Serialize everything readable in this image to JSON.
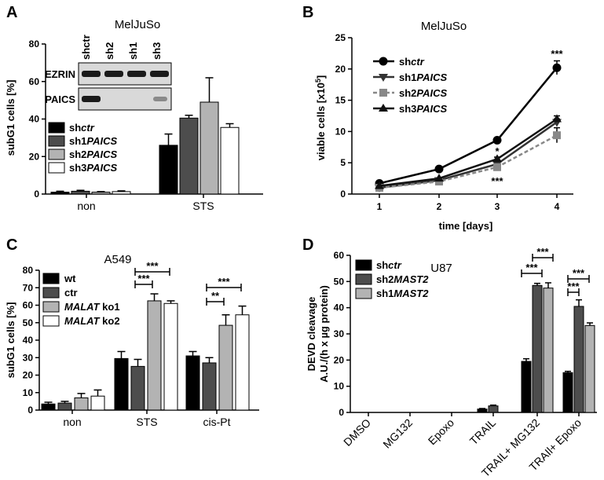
{
  "colors": {
    "black": "#000000",
    "dark": "#4d4d4d",
    "light": "#b3b3b3",
    "white": "#ffffff",
    "gray": "#888888"
  },
  "chart_data": [
    {
      "panel": "A",
      "type": "bar",
      "title": "MelJuSo",
      "ylabel": "subG1 cells [%]",
      "ylim": [
        0,
        80
      ],
      "yticks": [
        "0",
        "20",
        "40",
        "60",
        "80"
      ],
      "categories": [
        "non",
        "STS"
      ],
      "series": [
        {
          "name": "shctr",
          "name_parts": [
            "sh",
            "ctr"
          ],
          "values": [
            1,
            26
          ],
          "errors": [
            0.5,
            6
          ]
        },
        {
          "name": "sh1PAICS",
          "name_parts": [
            "sh1",
            "PAICS"
          ],
          "values": [
            1.5,
            40.5
          ],
          "errors": [
            0.5,
            1.5
          ]
        },
        {
          "name": "sh2PAICS",
          "name_parts": [
            "sh2",
            "PAICS"
          ],
          "values": [
            1,
            49
          ],
          "errors": [
            0.3,
            13
          ]
        },
        {
          "name": "sh3PAICS",
          "name_parts": [
            "sh3",
            "PAICS"
          ],
          "values": [
            1.3,
            35.5
          ],
          "errors": [
            0.4,
            2
          ]
        }
      ],
      "blot": {
        "lanes": [
          "shctr",
          "sh2",
          "sh1",
          "sh3"
        ],
        "rows": [
          "EZRIN",
          "PAICS"
        ]
      }
    },
    {
      "panel": "B",
      "type": "line",
      "title": "MelJuSo",
      "xlabel": "time [days]",
      "ylabel_parts": [
        "viable cells [x10",
        "5",
        "]"
      ],
      "ylim": [
        0,
        25
      ],
      "yticks": [
        "0",
        "5",
        "10",
        "15",
        "20",
        "25"
      ],
      "x": [
        1,
        2,
        3,
        4
      ],
      "xticks": [
        "1",
        "2",
        "3",
        "4"
      ],
      "series": [
        {
          "name": "shctr",
          "name_parts": [
            "sh",
            "ctr"
          ],
          "values": [
            1.7,
            4.0,
            8.6,
            20.2
          ],
          "errors": [
            0.1,
            0.2,
            0.3,
            1.1
          ]
        },
        {
          "name": "sh1PAICS",
          "name_parts": [
            "sh1",
            "PAICS"
          ],
          "values": [
            1.0,
            2.2,
            4.8,
            11.5
          ],
          "errors": [
            0.1,
            0.1,
            0.3,
            0.5
          ]
        },
        {
          "name": "sh2PAICS",
          "name_parts": [
            "sh2",
            "PAICS"
          ],
          "values": [
            1.0,
            2.0,
            4.3,
            9.4
          ],
          "errors": [
            0.1,
            0.1,
            0.3,
            1.2
          ]
        },
        {
          "name": "sh3PAICS",
          "name_parts": [
            "sh3",
            "PAICS"
          ],
          "values": [
            1.3,
            2.5,
            5.6,
            12.0
          ],
          "errors": [
            0.1,
            0.1,
            0.3,
            0.5
          ]
        }
      ],
      "annotations": [
        "***",
        "*",
        "***"
      ]
    },
    {
      "panel": "C",
      "type": "bar",
      "title": "A549",
      "ylabel": "subG1 cells [%]",
      "ylim": [
        0,
        80
      ],
      "yticks": [
        "0",
        "10",
        "20",
        "30",
        "40",
        "50",
        "60",
        "70",
        "80"
      ],
      "categories": [
        "non",
        "STS",
        "cis-Pt"
      ],
      "series": [
        {
          "name": "wt",
          "name_parts": [
            "wt",
            ""
          ],
          "values": [
            3.5,
            29.5,
            31
          ],
          "errors": [
            1,
            4,
            2.5
          ]
        },
        {
          "name": "ctr",
          "name_parts": [
            "ctr",
            ""
          ],
          "values": [
            4,
            25,
            27
          ],
          "errors": [
            1,
            4,
            3
          ]
        },
        {
          "name": "MALAT ko1",
          "name_parts": [
            "MALAT",
            " ko1"
          ],
          "values": [
            7,
            62.5,
            48.5
          ],
          "errors": [
            2.5,
            4,
            6
          ]
        },
        {
          "name": "MALAT ko2",
          "name_parts": [
            "MALAT",
            " ko2"
          ],
          "values": [
            8,
            61,
            54.5
          ],
          "errors": [
            3.5,
            1.5,
            5
          ]
        }
      ],
      "annotations": [
        "***",
        "***",
        "***",
        "**"
      ]
    },
    {
      "panel": "D",
      "type": "bar",
      "title": "U87",
      "ylabel_lines": [
        "DEVD cleavage",
        "A.U./(h x µg protein)"
      ],
      "ylim": [
        0,
        60
      ],
      "yticks": [
        "0",
        "10",
        "20",
        "30",
        "40",
        "50",
        "60"
      ],
      "categories": [
        "DMSO",
        "MG132",
        "Epoxo",
        "TRAIL",
        "TRAIL+ MG132",
        "TRAIl+ Epoxo"
      ],
      "series": [
        {
          "name": "shctr",
          "name_parts": [
            "sh",
            "ctr"
          ],
          "values": [
            0,
            0,
            0,
            1.3,
            19.5,
            15.2
          ],
          "errors": [
            0,
            0,
            0,
            0.2,
            1,
            0.5
          ]
        },
        {
          "name": "sh2MAST2",
          "name_parts": [
            "sh2",
            "MAST2"
          ],
          "values": [
            0,
            0,
            0,
            2.5,
            48.5,
            40.5
          ],
          "errors": [
            0,
            0,
            0,
            0.3,
            0.8,
            2.5
          ]
        },
        {
          "name": "sh1MAST2",
          "name_parts": [
            "sh1",
            "MAST2"
          ],
          "values": [
            0,
            0,
            0,
            0,
            47.5,
            33.2
          ],
          "errors": [
            0,
            0,
            0,
            0,
            2,
            1
          ]
        }
      ],
      "annotations": [
        "***",
        "***",
        "***",
        "***"
      ]
    }
  ]
}
